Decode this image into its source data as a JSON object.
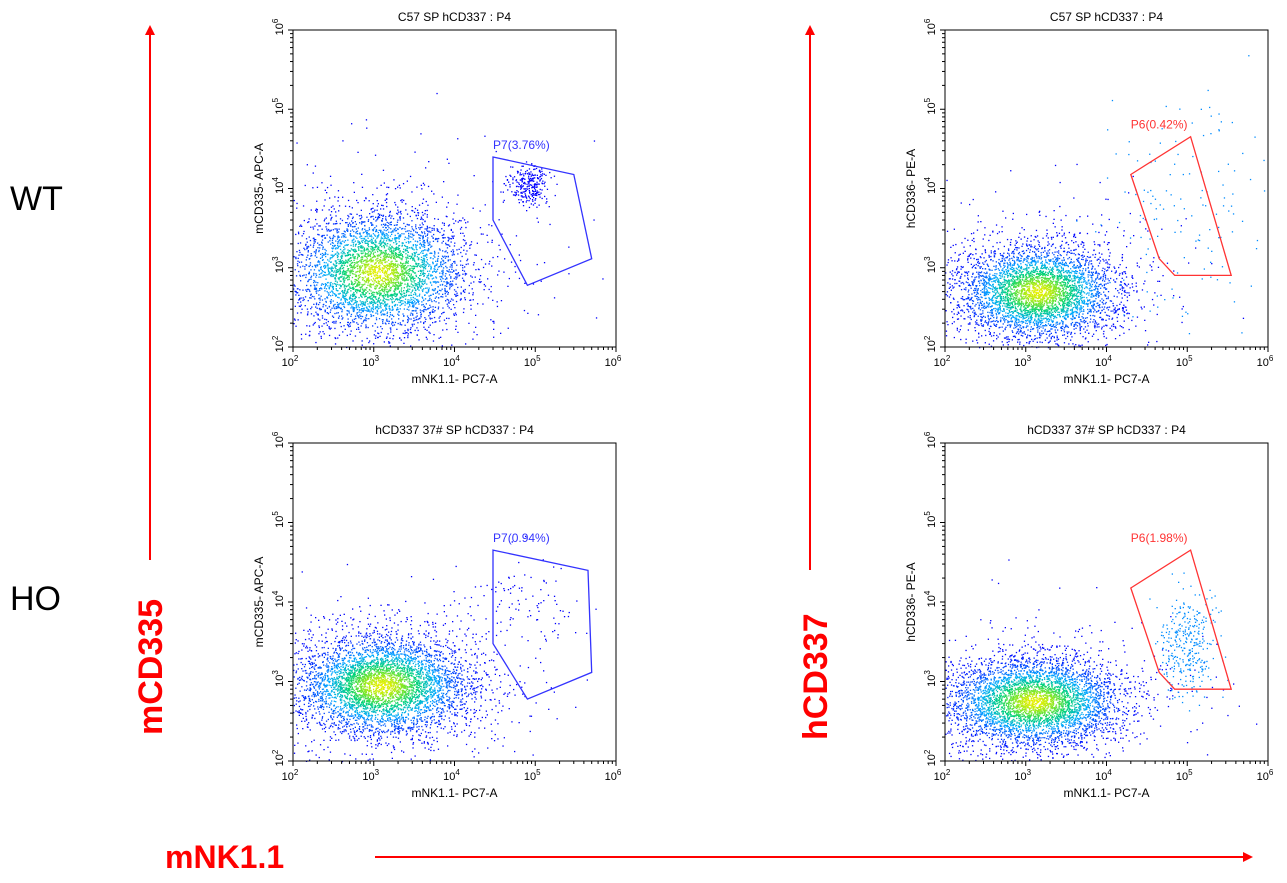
{
  "row_labels": {
    "top": "WT",
    "bottom": "HO"
  },
  "axis_arrows": {
    "left_vertical": "mCD335",
    "right_vertical": "hCD337",
    "horizontal": "mNK1.1",
    "color": "#ff0000"
  },
  "chart_data": [
    {
      "type": "scatter",
      "title": "C57 SP hCD337 : P4",
      "xlabel": "mNK1.1- PC7-A",
      "ylabel": "mCD335- APC-A",
      "scale": "log",
      "xlim": [
        100,
        1000000
      ],
      "ylim": [
        100,
        1000000
      ],
      "tick_labels": [
        "10^2",
        "10^3",
        "10^4",
        "10^5",
        "10^6"
      ],
      "gate": {
        "label": "P7(3.76%)",
        "color": "#3333ff",
        "polygon": [
          [
            30000,
            25000
          ],
          [
            300000,
            15000
          ],
          [
            500000,
            1300
          ],
          [
            80000,
            600
          ],
          [
            30000,
            4000
          ]
        ]
      },
      "populations": [
        {
          "name": "main",
          "x_center_log": 3.05,
          "y_center_log": 2.95,
          "sx": 0.55,
          "sy": 0.38,
          "count": 4200
        },
        {
          "name": "gate",
          "x_center_log": 4.9,
          "y_center_log": 4.05,
          "sx": 0.13,
          "sy": 0.13,
          "count": 260
        }
      ]
    },
    {
      "type": "scatter",
      "title": "C57 SP hCD337 : P4",
      "xlabel": "mNK1.1- PC7-A",
      "ylabel": "hCD336- PE-A",
      "scale": "log",
      "xlim": [
        100,
        1000000
      ],
      "ylim": [
        100,
        1000000
      ],
      "tick_labels": [
        "10^2",
        "10^3",
        "10^4",
        "10^5",
        "10^6"
      ],
      "gate": {
        "label": "P6(0.42%)",
        "color": "#ff3333",
        "polygon": [
          [
            20000,
            15000
          ],
          [
            110000,
            45000
          ],
          [
            350000,
            800
          ],
          [
            70000,
            800
          ],
          [
            45000,
            1300
          ],
          [
            20000,
            15000
          ]
        ]
      },
      "populations": [
        {
          "name": "main",
          "x_center_log": 3.15,
          "y_center_log": 2.7,
          "sx": 0.5,
          "sy": 0.3,
          "count": 4200
        },
        {
          "name": "gate",
          "x_center_log": 5.0,
          "y_center_log": 3.8,
          "sx": 0.5,
          "sy": 0.8,
          "count": 140
        }
      ]
    },
    {
      "type": "scatter",
      "title": "hCD337 37# SP hCD337 : P4",
      "xlabel": "mNK1.1- PC7-A",
      "ylabel": "mCD335- APC-A",
      "scale": "log",
      "xlim": [
        100,
        1000000
      ],
      "ylim": [
        100,
        1000000
      ],
      "tick_labels": [
        "10^2",
        "10^3",
        "10^4",
        "10^5",
        "10^6"
      ],
      "gate": {
        "label": "P7(0.94%)",
        "color": "#3333ff",
        "polygon": [
          [
            30000,
            45000
          ],
          [
            450000,
            25000
          ],
          [
            500000,
            1300
          ],
          [
            80000,
            600
          ],
          [
            30000,
            3000
          ]
        ]
      },
      "populations": [
        {
          "name": "main",
          "x_center_log": 3.1,
          "y_center_log": 2.95,
          "sx": 0.55,
          "sy": 0.32,
          "count": 4800
        },
        {
          "name": "gate",
          "x_center_log": 4.9,
          "y_center_log": 3.9,
          "sx": 0.3,
          "sy": 0.35,
          "count": 90
        }
      ]
    },
    {
      "type": "scatter",
      "title": "hCD337 37# SP hCD337 : P4",
      "xlabel": "mNK1.1- PC7-A",
      "ylabel": "hCD336- PE-A",
      "scale": "log",
      "xlim": [
        100,
        1000000
      ],
      "ylim": [
        100,
        1000000
      ],
      "tick_labels": [
        "10^2",
        "10^3",
        "10^4",
        "10^5",
        "10^6"
      ],
      "gate": {
        "label": "P6(1.98%)",
        "color": "#ff3333",
        "polygon": [
          [
            20000,
            15000
          ],
          [
            110000,
            45000
          ],
          [
            350000,
            800
          ],
          [
            70000,
            800
          ],
          [
            45000,
            1300
          ],
          [
            20000,
            15000
          ]
        ]
      },
      "populations": [
        {
          "name": "main",
          "x_center_log": 3.1,
          "y_center_log": 2.75,
          "sx": 0.55,
          "sy": 0.28,
          "count": 4600
        },
        {
          "name": "gate",
          "x_center_log": 5.0,
          "y_center_log": 3.45,
          "sx": 0.17,
          "sy": 0.3,
          "count": 320
        }
      ]
    }
  ]
}
